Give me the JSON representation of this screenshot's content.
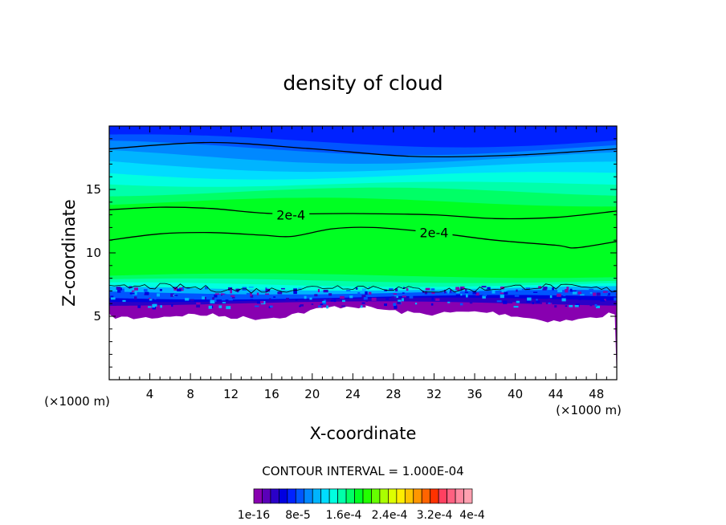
{
  "chart_data": {
    "type": "contour",
    "title": "density of cloud",
    "xlabel": "X-coordinate",
    "ylabel": "Z-coordinate",
    "x_unit_left": "(×1000 m)",
    "x_unit_right": "(×1000 m)",
    "xlim": [
      0,
      50
    ],
    "ylim": [
      0,
      20
    ],
    "x_ticks": [
      4,
      8,
      12,
      16,
      20,
      24,
      28,
      32,
      36,
      40,
      44,
      48
    ],
    "y_ticks": [
      5,
      10,
      15
    ],
    "contour_labels": [
      {
        "text": "2e-4",
        "x": 17.9,
        "z": 13.0
      },
      {
        "text": "2e-4",
        "x": 32.0,
        "z": 11.6
      }
    ],
    "contour_interval_text": "CONTOUR INTERVAL = 1.000E-04",
    "colorbar": {
      "labels": [
        "1e-16",
        "8e-5",
        "1.6e-4",
        "2.4e-4",
        "3.2e-4",
        "4e-4"
      ],
      "colors": [
        "#8800b0",
        "#5a00b8",
        "#2a00c8",
        "#0000e0",
        "#0022ff",
        "#0055ff",
        "#0088ff",
        "#00b4ff",
        "#00dcff",
        "#00ffe0",
        "#00ffaa",
        "#00ff66",
        "#00ff22",
        "#22ff00",
        "#66ff00",
        "#aaff00",
        "#ddff00",
        "#ffee00",
        "#ffc400",
        "#ff9600",
        "#ff6400",
        "#ff3200",
        "#ff4060",
        "#ff6080",
        "#ff88a0",
        "#ffa0b0"
      ]
    },
    "bands": [
      {
        "top": 20.0,
        "color": "#0022ff"
      },
      {
        "top": 19.0,
        "color": "#0055ff"
      },
      {
        "top": 18.4,
        "color": "#0088ff"
      },
      {
        "top": 17.7,
        "color": "#00b4ff"
      },
      {
        "top": 17.0,
        "color": "#00dcff"
      },
      {
        "top": 16.3,
        "color": "#00ffe0"
      },
      {
        "top": 15.6,
        "color": "#00ffaa"
      },
      {
        "top": 14.8,
        "color": "#00ff66"
      },
      {
        "top": 14.0,
        "color": "#00ff22"
      },
      {
        "top": 8.2,
        "color": "#00ff66"
      },
      {
        "top": 7.8,
        "color": "#00ffaa"
      },
      {
        "top": 7.5,
        "color": "#00ffe0"
      },
      {
        "top": 7.2,
        "color": "#00b4ff"
      },
      {
        "top": 6.9,
        "color": "#0055ff"
      },
      {
        "top": 6.5,
        "color": "#0000e0"
      },
      {
        "top": 6.3,
        "color": "#2a00c8"
      },
      {
        "top": 6.0,
        "color": "#8800b0"
      }
    ],
    "contours": [
      {
        "level": "upper",
        "points": [
          [
            0,
            18.2
          ],
          [
            10,
            18.7
          ],
          [
            20,
            18.2
          ],
          [
            30,
            17.6
          ],
          [
            40,
            17.7
          ],
          [
            50,
            18.2
          ]
        ]
      },
      {
        "level": "2e-4",
        "points": [
          [
            0,
            13.4
          ],
          [
            5,
            13.6
          ],
          [
            10,
            13.5
          ],
          [
            16,
            13.1
          ],
          [
            24,
            13.1
          ],
          [
            32,
            13.0
          ],
          [
            38,
            12.7
          ],
          [
            44,
            12.8
          ],
          [
            50,
            13.3
          ]
        ]
      },
      {
        "level": "2e-4",
        "points": [
          [
            0,
            11.0
          ],
          [
            5,
            11.5
          ],
          [
            10,
            11.6
          ],
          [
            15,
            11.4
          ],
          [
            18,
            11.3
          ],
          [
            22,
            11.9
          ],
          [
            26,
            12.0
          ],
          [
            32,
            11.6
          ],
          [
            38,
            11.0
          ],
          [
            44,
            10.6
          ],
          [
            46,
            10.4
          ],
          [
            50,
            10.9
          ]
        ]
      }
    ]
  }
}
